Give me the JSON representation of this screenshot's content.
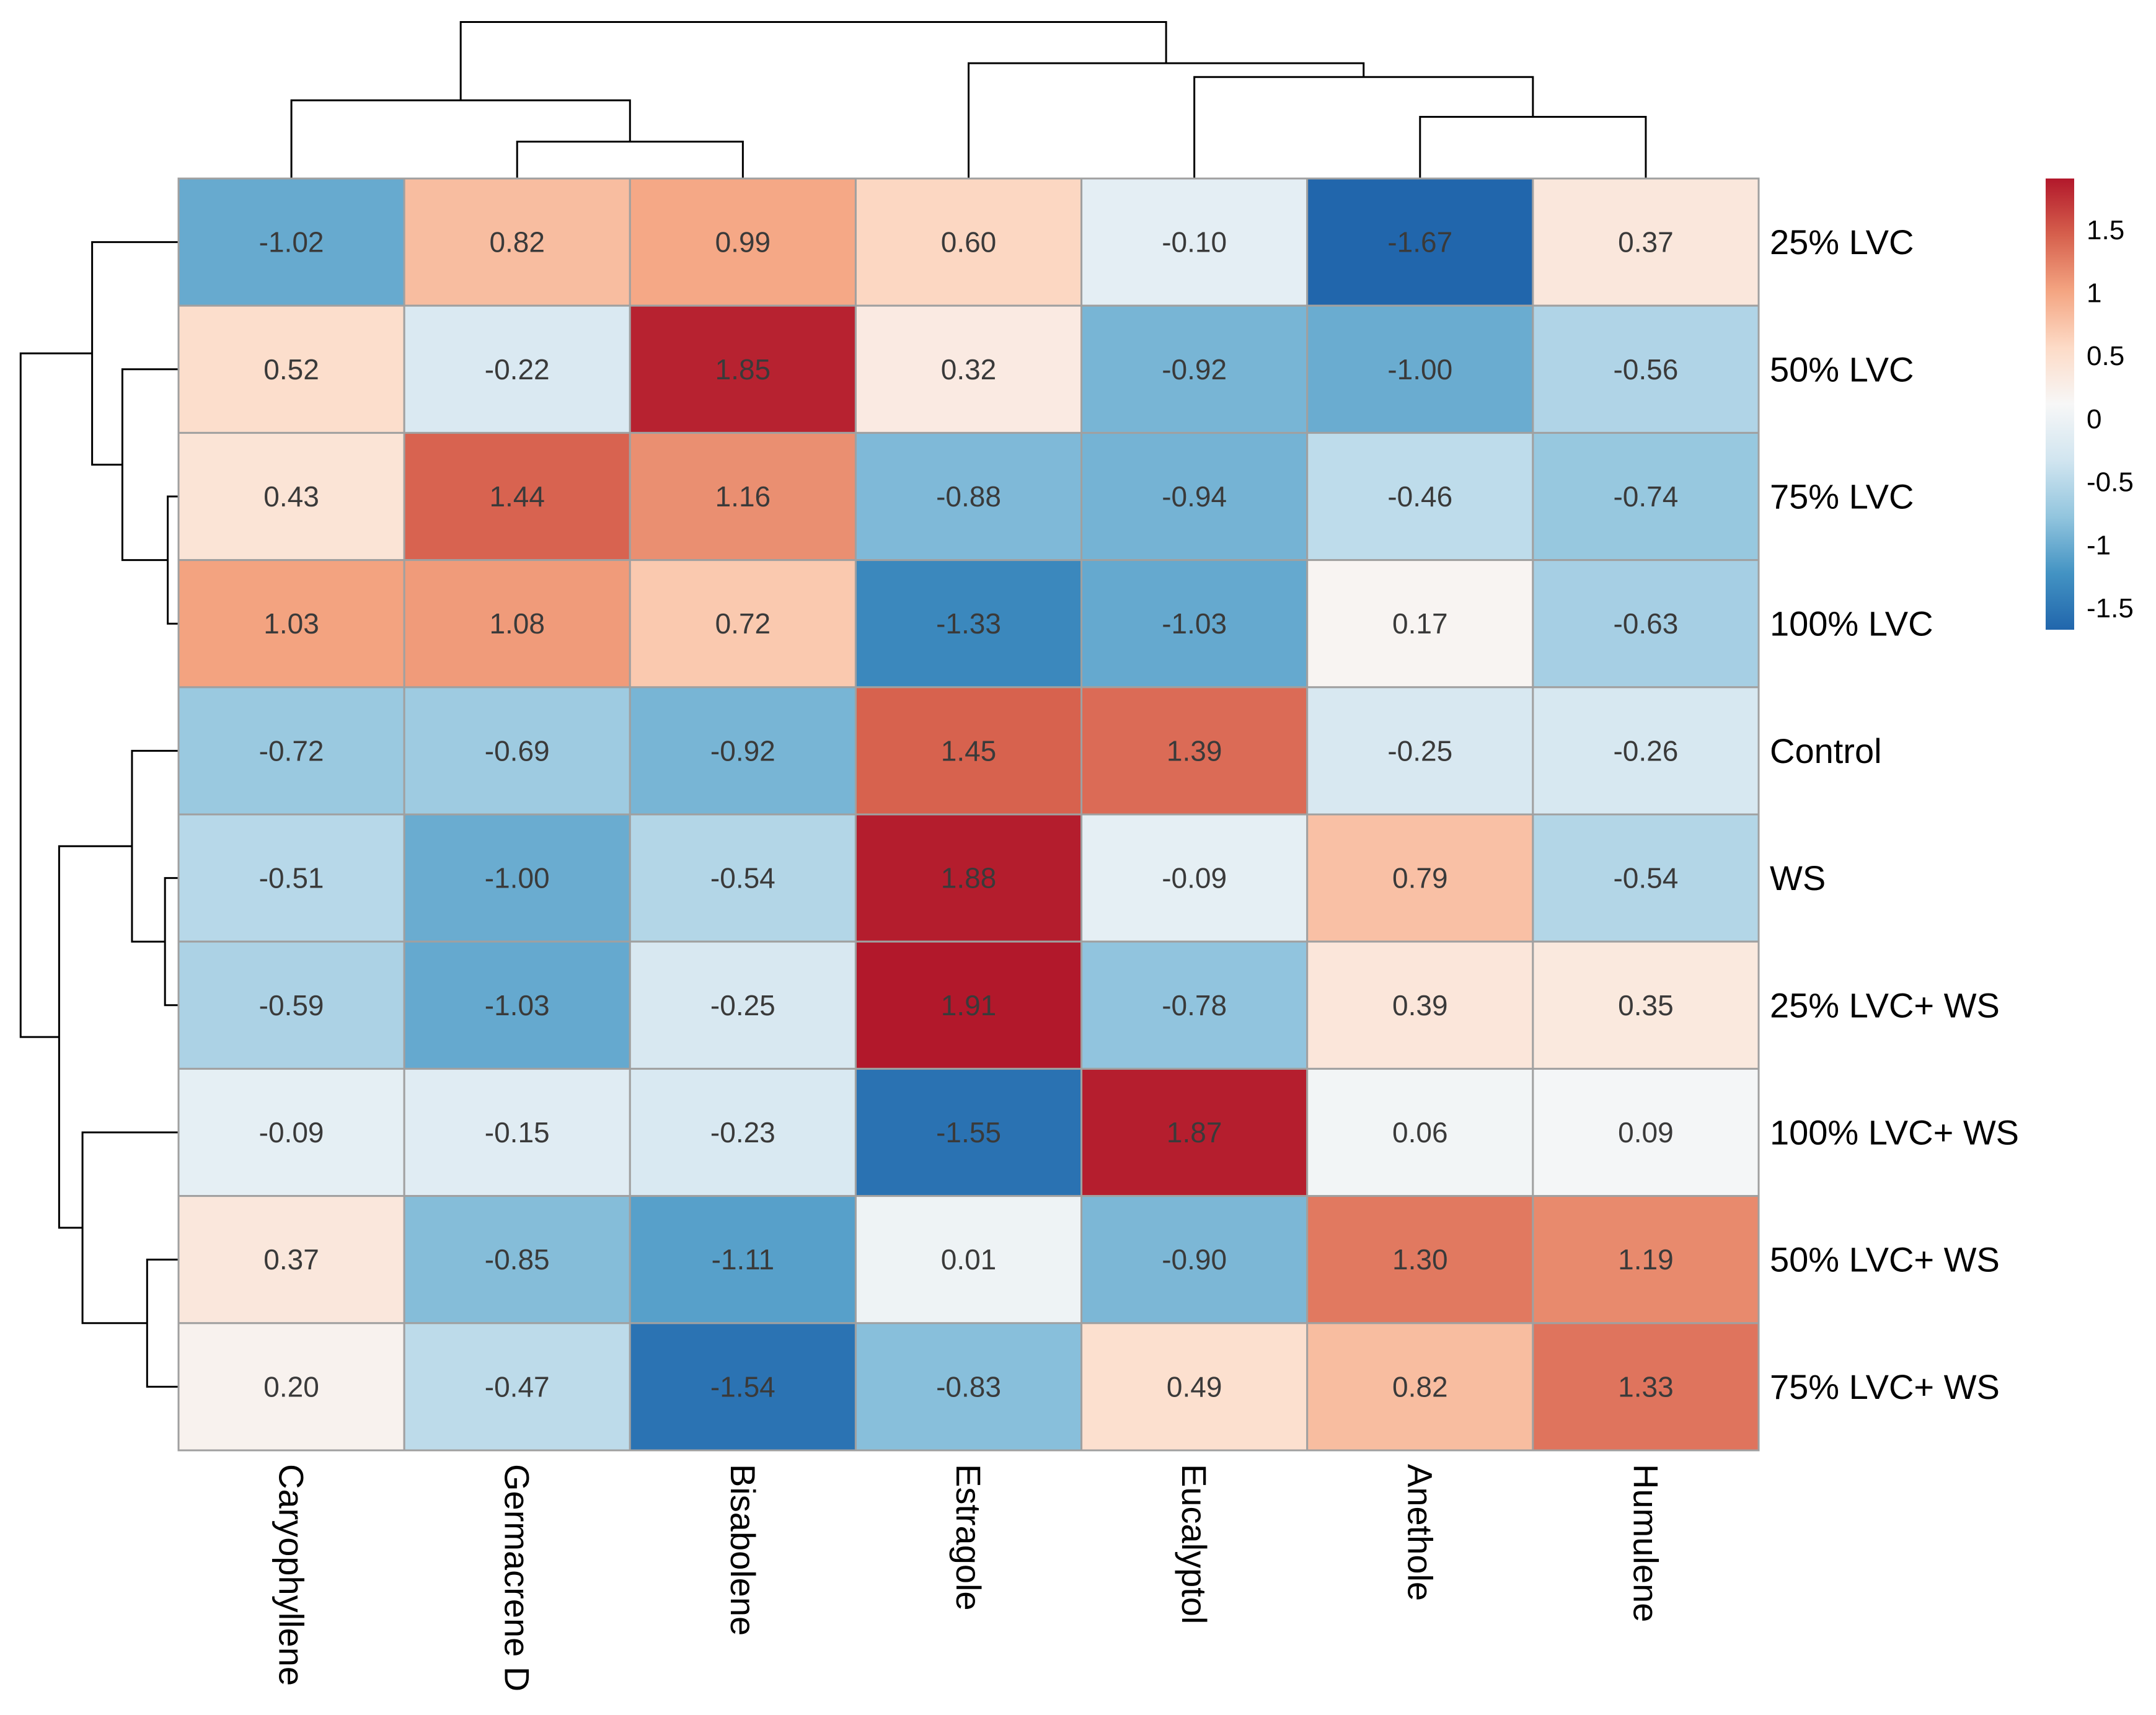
{
  "chart_data": {
    "type": "heatmap",
    "title": "",
    "rows": [
      "25% LVC",
      "50% LVC",
      "75% LVC",
      "100% LVC",
      "Control",
      "WS",
      "25% LVC+ WS",
      "100% LVC+ WS",
      "50% LVC+ WS",
      "75% LVC+ WS"
    ],
    "columns": [
      "Caryophyllene",
      "Germacrene D",
      "Bisabolene",
      "Estragole",
      "Eucalyptol",
      "Anethole",
      "Humulene"
    ],
    "values": [
      [
        -1.02,
        0.82,
        0.99,
        0.6,
        -0.1,
        -1.67,
        0.37
      ],
      [
        0.52,
        -0.22,
        1.85,
        0.32,
        -0.92,
        -1.0,
        -0.56
      ],
      [
        0.43,
        1.44,
        1.16,
        -0.88,
        -0.94,
        -0.46,
        -0.74
      ],
      [
        1.03,
        1.08,
        0.72,
        -1.33,
        -1.03,
        0.17,
        -0.63
      ],
      [
        -0.72,
        -0.69,
        -0.92,
        1.45,
        1.39,
        -0.25,
        -0.26
      ],
      [
        -0.51,
        -1.0,
        -0.54,
        1.88,
        -0.09,
        0.79,
        -0.54
      ],
      [
        -0.59,
        -1.03,
        -0.25,
        1.91,
        -0.78,
        0.39,
        0.35
      ],
      [
        -0.09,
        -0.15,
        -0.23,
        -1.55,
        1.87,
        0.06,
        0.09
      ],
      [
        0.37,
        -0.85,
        -1.11,
        0.01,
        -0.9,
        1.3,
        1.19
      ],
      [
        0.2,
        -0.47,
        -1.54,
        -0.83,
        0.49,
        0.82,
        1.33
      ]
    ],
    "value_labels": [
      [
        "-1.02",
        "0.82",
        "0.99",
        "0.60",
        "-0.10",
        "-1.67",
        "0.37"
      ],
      [
        "0.52",
        "-0.22",
        "1.85",
        "0.32",
        "-0.92",
        "-1.00",
        "-0.56"
      ],
      [
        "0.43",
        "1.44",
        "1.16",
        "-0.88",
        "-0.94",
        "-0.46",
        "-0.74"
      ],
      [
        "1.03",
        "1.08",
        "0.72",
        "-1.33",
        "-1.03",
        "0.17",
        "-0.63"
      ],
      [
        "-0.72",
        "-0.69",
        "-0.92",
        "1.45",
        "1.39",
        "-0.25",
        "-0.26"
      ],
      [
        "-0.51",
        "-1.00",
        "-0.54",
        "1.88",
        "-0.09",
        "0.79",
        "-0.54"
      ],
      [
        "-0.59",
        "-1.03",
        "-0.25",
        "1.91",
        "-0.78",
        "0.39",
        "0.35"
      ],
      [
        "-0.09",
        "-0.15",
        "-0.23",
        "-1.55",
        "1.87",
        "0.06",
        "0.09"
      ],
      [
        "0.37",
        "-0.85",
        "-1.11",
        "0.01",
        "-0.90",
        "1.30",
        "1.19"
      ],
      [
        "0.20",
        "-0.47",
        "-1.54",
        "-0.83",
        "0.49",
        "0.82",
        "1.33"
      ]
    ],
    "color_scale": {
      "range": [
        -1.67,
        1.91
      ],
      "ticks": [
        1.5,
        1,
        0.5,
        0,
        -0.5,
        -1,
        -1.5
      ],
      "tick_labels": [
        "1.5",
        "1",
        "0.5",
        "0",
        "-0.5",
        "-1",
        "-1.5"
      ],
      "colors": [
        "#2166ac",
        "#4393c3",
        "#92c5de",
        "#d1e5f0",
        "#f7f7f7",
        "#fddbc7",
        "#f4a582",
        "#d6604d",
        "#b2182b"
      ],
      "legend_placement": "right"
    },
    "row_dendrogram": true,
    "column_dendrogram": true,
    "grid_color": "#a0a0a0"
  }
}
